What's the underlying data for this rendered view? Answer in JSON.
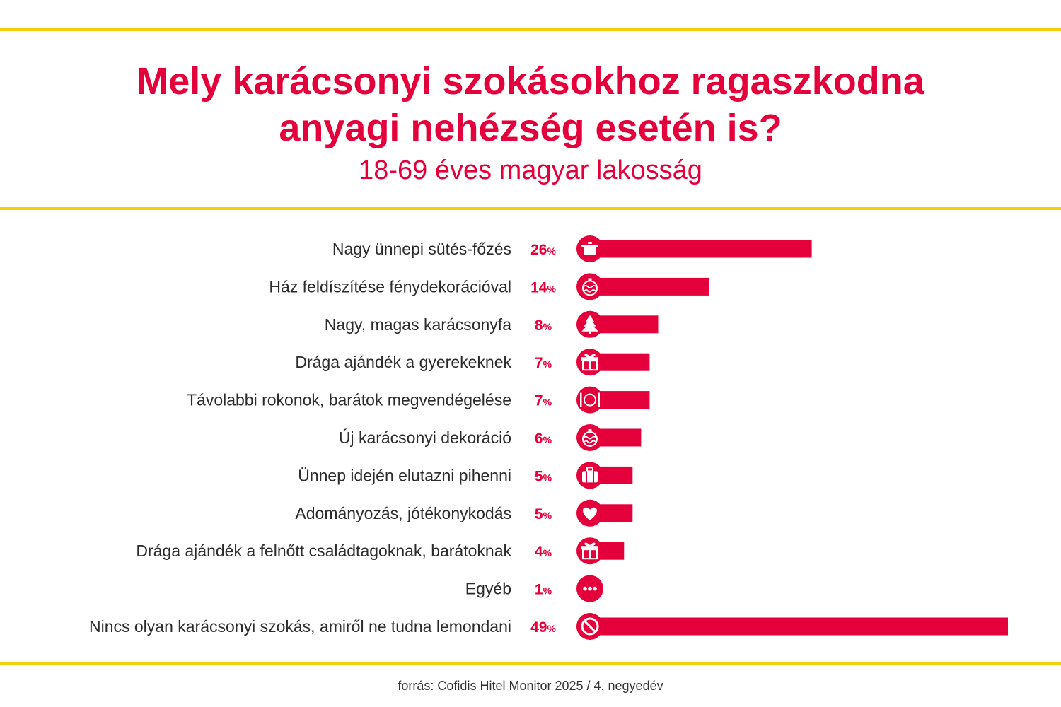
{
  "colors": {
    "accent": "#e4003a",
    "rule": "#f6d10b",
    "label_text": "#2b2b2b"
  },
  "title_line1": "Mely karácsonyi szokásokhoz ragaszkodna",
  "title_line2": "anyagi nehézség esetén is?",
  "subtitle": "18-69 éves magyar lakosság",
  "source": "forrás: Cofidis Hitel Monitor 2025 / 4. negyedév",
  "chart_data": {
    "type": "bar",
    "orientation": "horizontal",
    "unit": "%",
    "xlim": [
      0,
      49
    ],
    "grid": false,
    "legend": "none",
    "categories": [
      "Nagy ünnepi sütés-főzés",
      "Ház feldíszítése fénydekorációval",
      "Nagy, magas karácsonyfa",
      "Drága ajándék a gyerekeknek",
      "Távolabbi rokonok, barátok megvendégelése",
      "Új karácsonyi dekoráció",
      "Ünnep idején elutazni pihenni",
      "Adományozás, jótékonykodás",
      "Drága ajándék a felnőtt családtagoknak, barátoknak",
      "Egyéb",
      "Nincs olyan karácsonyi szokás, amiről ne tudna lemondani"
    ],
    "values": [
      26,
      14,
      8,
      7,
      7,
      6,
      5,
      5,
      4,
      1,
      49
    ],
    "icons": [
      "cooking-pot-icon",
      "ornament-icon",
      "christmas-tree-icon",
      "gift-icon",
      "plate-cutlery-icon",
      "ornament-icon",
      "suitcase-icon",
      "heart-icon",
      "gift-icon",
      "more-dots-icon",
      "no-sign-icon"
    ]
  }
}
